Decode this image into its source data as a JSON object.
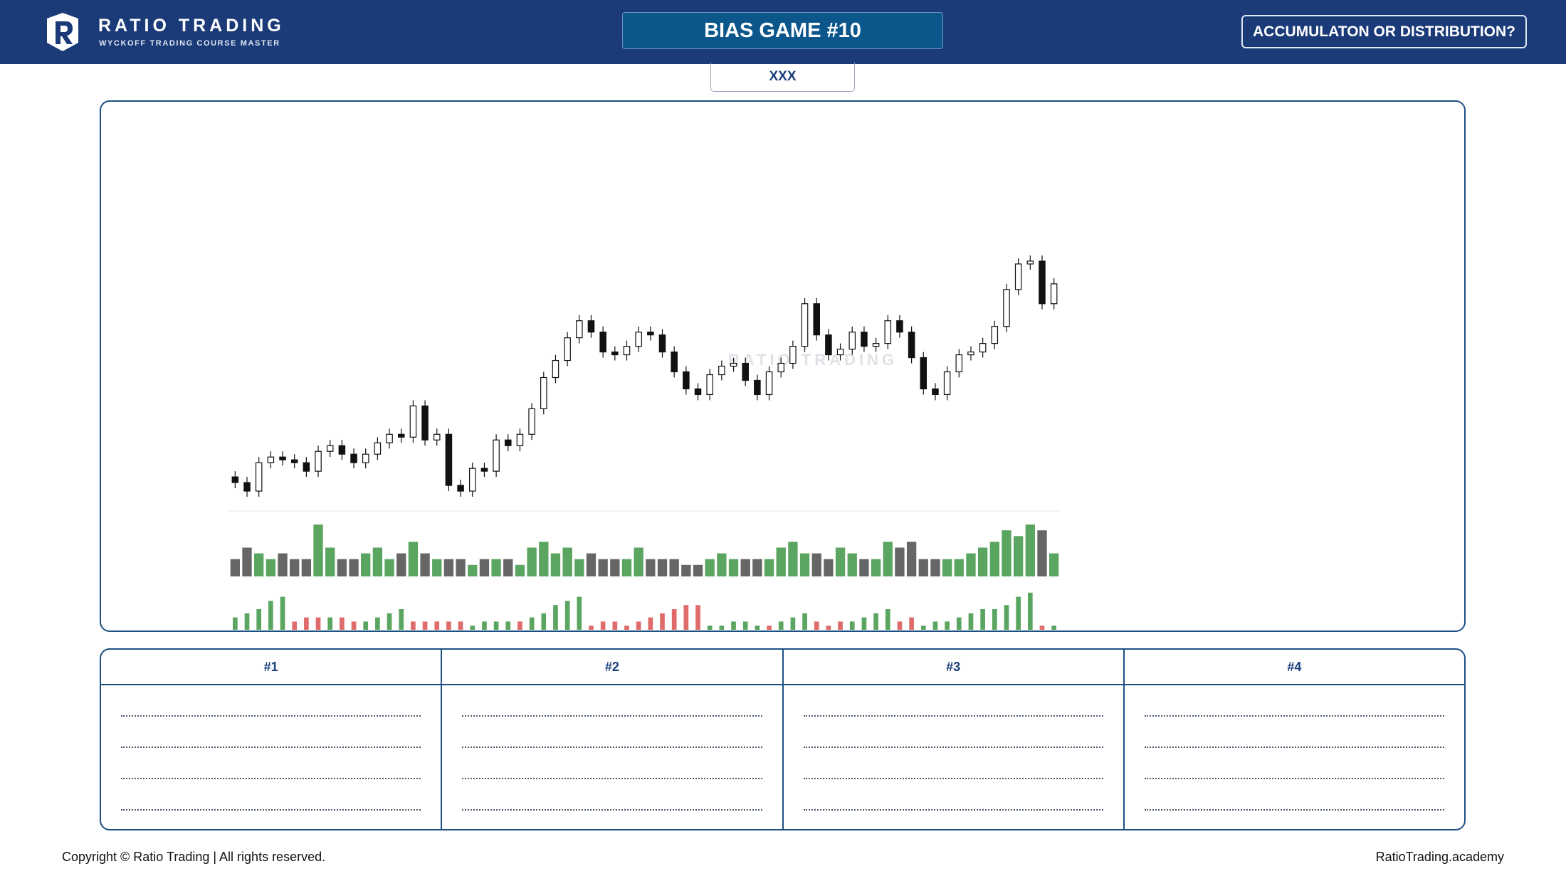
{
  "header": {
    "brand": "RATIO TRADING",
    "tagline": "WYCKOFF TRADING COURSE MASTER",
    "title": "BIAS GAME #10",
    "question": "ACCUMULATON OR DISTRIBUTION?",
    "tab": "XXX"
  },
  "chart_data": {
    "type": "candlestick",
    "watermark": "RATIO TRADING",
    "open": [
      12,
      10,
      7,
      17,
      19,
      18,
      17,
      14,
      21,
      23,
      20,
      17,
      20,
      24,
      27,
      26,
      37,
      25,
      27,
      9,
      7,
      15,
      14,
      25,
      23,
      27,
      36,
      47,
      53,
      61,
      67,
      63,
      56,
      55,
      58,
      63,
      62,
      56,
      49,
      43,
      41,
      48,
      51,
      52,
      46,
      41,
      49,
      52,
      58,
      73,
      62,
      55,
      57,
      63,
      58,
      59,
      67,
      63,
      54,
      43,
      41,
      49,
      55,
      56,
      59,
      65,
      78,
      87,
      88,
      73
    ],
    "high": [
      14,
      12,
      19,
      21,
      21,
      20,
      19,
      23,
      25,
      25,
      22,
      22,
      26,
      29,
      29,
      39,
      39,
      29,
      29,
      11,
      17,
      17,
      27,
      27,
      29,
      38,
      49,
      55,
      63,
      69,
      69,
      65,
      58,
      60,
      65,
      65,
      64,
      58,
      51,
      45,
      50,
      53,
      54,
      54,
      48,
      51,
      54,
      60,
      75,
      75,
      64,
      59,
      65,
      65,
      61,
      69,
      69,
      65,
      56,
      45,
      51,
      57,
      58,
      61,
      67,
      80,
      89,
      90,
      90,
      82
    ],
    "low": [
      8,
      5,
      5,
      15,
      16,
      15,
      12,
      12,
      19,
      18,
      15,
      15,
      18,
      22,
      24,
      24,
      23,
      23,
      7,
      5,
      5,
      12,
      12,
      21,
      21,
      25,
      34,
      45,
      51,
      59,
      61,
      54,
      53,
      53,
      56,
      60,
      54,
      47,
      41,
      39,
      39,
      46,
      49,
      44,
      39,
      39,
      47,
      50,
      56,
      60,
      53,
      53,
      55,
      56,
      56,
      57,
      61,
      52,
      41,
      39,
      39,
      47,
      53,
      54,
      57,
      63,
      76,
      85,
      71,
      71
    ],
    "close": [
      10,
      7,
      17,
      19,
      18,
      17,
      14,
      21,
      23,
      20,
      17,
      20,
      24,
      27,
      26,
      37,
      25,
      27,
      9,
      7,
      15,
      14,
      25,
      23,
      27,
      36,
      47,
      53,
      61,
      67,
      63,
      56,
      55,
      58,
      63,
      62,
      56,
      49,
      43,
      41,
      48,
      51,
      52,
      46,
      41,
      49,
      52,
      58,
      73,
      62,
      55,
      57,
      63,
      58,
      59,
      67,
      63,
      54,
      43,
      41,
      49,
      55,
      56,
      59,
      65,
      78,
      87,
      88,
      73,
      80
    ],
    "ylim": [
      0,
      95
    ],
    "up_color": "#ffffff",
    "down_color": "#111111",
    "volume": {
      "values": [
        3,
        5,
        4,
        3,
        4,
        3,
        3,
        9,
        5,
        3,
        3,
        4,
        5,
        3,
        4,
        6,
        4,
        3,
        3,
        3,
        2,
        3,
        3,
        3,
        2,
        5,
        6,
        4,
        5,
        3,
        4,
        3,
        3,
        3,
        5,
        3,
        3,
        3,
        2,
        2,
        3,
        4,
        3,
        3,
        3,
        3,
        5,
        6,
        4,
        4,
        3,
        5,
        4,
        3,
        3,
        6,
        5,
        6,
        3,
        3,
        3,
        3,
        4,
        5,
        6,
        8,
        7,
        9,
        8,
        4
      ],
      "ylim": [
        0,
        10
      ],
      "up_color": "#5aa55f",
      "down_color": "#666666"
    },
    "indicator": {
      "values": [
        3,
        4,
        5,
        7,
        8,
        2,
        3,
        3,
        3,
        3,
        2,
        2,
        3,
        4,
        5,
        2,
        2,
        2,
        2,
        2,
        1,
        2,
        2,
        2,
        2,
        3,
        4,
        6,
        7,
        8,
        1,
        2,
        2,
        1,
        2,
        3,
        4,
        5,
        6,
        6,
        1,
        1,
        2,
        2,
        1,
        1,
        2,
        3,
        4,
        2,
        1,
        2,
        2,
        3,
        4,
        5,
        2,
        3,
        1,
        2,
        2,
        3,
        4,
        5,
        5,
        6,
        8,
        9,
        1,
        1
      ],
      "ylim": [
        0,
        10
      ],
      "colors": [
        "#5aa55f",
        "#5aa55f",
        "#5aa55f",
        "#5aa55f",
        "#5aa55f",
        "#e06b6b",
        "#e06b6b",
        "#e06b6b",
        "#5aa55f",
        "#e06b6b",
        "#e06b6b",
        "#5aa55f",
        "#5aa55f",
        "#5aa55f",
        "#5aa55f",
        "#e06b6b",
        "#e06b6b",
        "#e06b6b",
        "#e06b6b",
        "#e06b6b",
        "#5aa55f",
        "#5aa55f",
        "#5aa55f",
        "#5aa55f",
        "#e06b6b",
        "#5aa55f",
        "#5aa55f",
        "#5aa55f",
        "#5aa55f",
        "#5aa55f",
        "#e06b6b",
        "#e06b6b",
        "#e06b6b",
        "#e06b6b",
        "#e06b6b",
        "#e06b6b",
        "#e06b6b",
        "#e06b6b",
        "#e06b6b",
        "#e06b6b",
        "#5aa55f",
        "#5aa55f",
        "#5aa55f",
        "#5aa55f",
        "#5aa55f",
        "#e06b6b",
        "#5aa55f",
        "#5aa55f",
        "#5aa55f",
        "#e06b6b",
        "#e06b6b",
        "#e06b6b",
        "#5aa55f",
        "#5aa55f",
        "#5aa55f",
        "#5aa55f",
        "#e06b6b",
        "#e06b6b",
        "#5aa55f",
        "#5aa55f",
        "#5aa55f",
        "#5aa55f",
        "#5aa55f",
        "#5aa55f",
        "#5aa55f",
        "#5aa55f",
        "#5aa55f",
        "#5aa55f",
        "#e06b6b",
        "#5aa55f"
      ]
    }
  },
  "table": {
    "headers": [
      "#1",
      "#2",
      "#3",
      "#4"
    ]
  },
  "footer": {
    "copyright": "Copyright © Ratio Trading | All rights reserved.",
    "site": "RatioTrading.academy"
  }
}
